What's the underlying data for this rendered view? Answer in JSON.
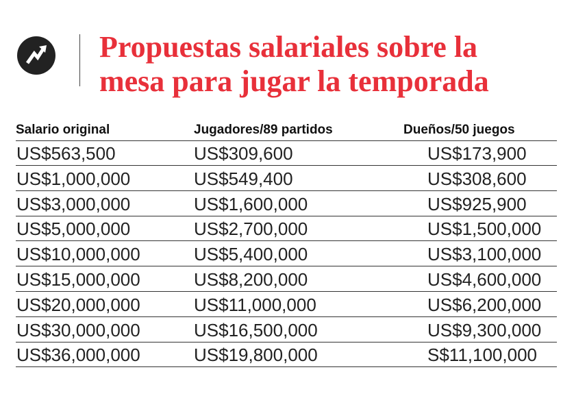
{
  "header": {
    "title": [
      "Propuestas salariales sobre la",
      "mesa para jugar la temporada"
    ]
  },
  "table": {
    "columns": [
      "Salario original",
      "Jugadores/89 partidos",
      "Dueños/50 juegos"
    ],
    "rows": [
      [
        "US$563,500",
        "US$309,600",
        "US$173,900"
      ],
      [
        "US$1,000,000",
        "US$549,400",
        "US$308,600"
      ],
      [
        "US$3,000,000",
        "US$1,600,000",
        "US$925,900"
      ],
      [
        "US$5,000,000",
        "US$2,700,000",
        "US$1,500,000"
      ],
      [
        "US$10,000,000",
        "US$5,400,000",
        "US$3,100,000"
      ],
      [
        "US$15,000,000",
        "US$8,200,000",
        "US$4,600,000"
      ],
      [
        "US$20,000,000",
        "US$11,000,000",
        "US$6,200,000"
      ],
      [
        "US$30,000,000",
        "US$16,500,000",
        "US$9,300,000"
      ],
      [
        "US$36,000,000",
        "US$19,800,000",
        "S$11,100,000"
      ]
    ]
  }
}
